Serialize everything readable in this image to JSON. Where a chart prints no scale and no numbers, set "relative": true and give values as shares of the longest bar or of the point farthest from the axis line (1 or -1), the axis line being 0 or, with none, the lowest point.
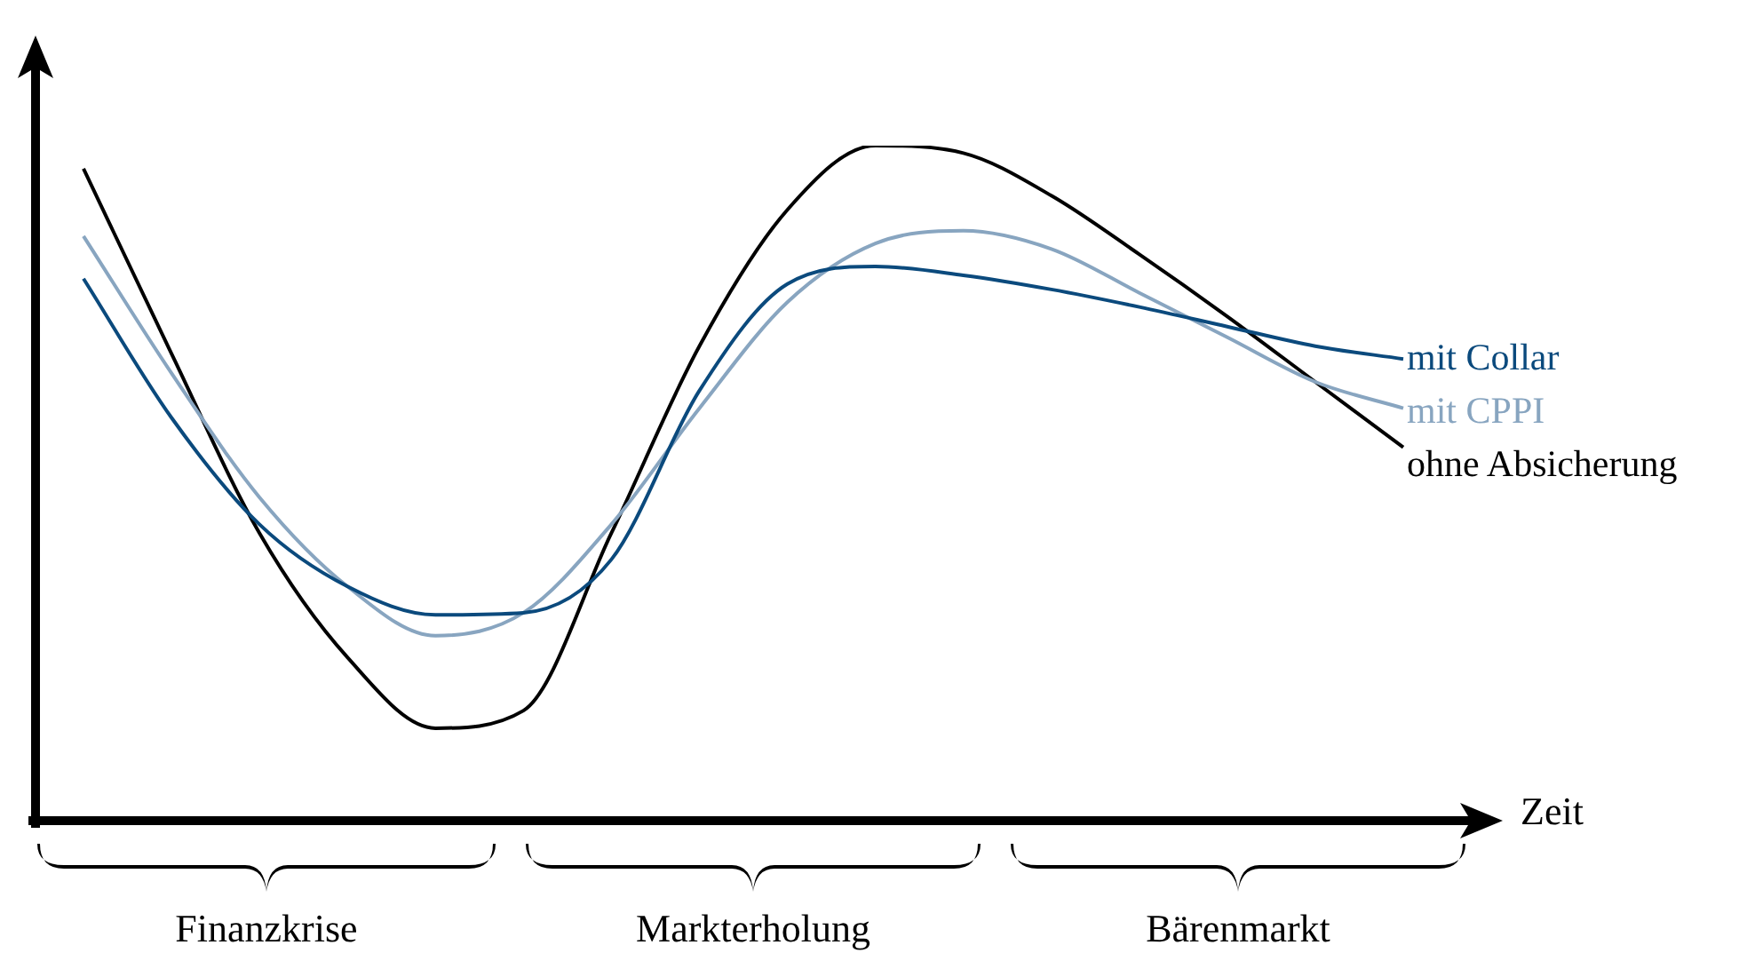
{
  "chart_data": {
    "type": "line",
    "relative": true,
    "marker": "none",
    "xlabel": "Zeit",
    "categories": [
      null,
      null,
      null,
      null,
      null,
      null,
      null,
      null,
      null,
      null,
      null,
      null,
      null,
      null,
      null,
      null
    ],
    "series": [
      {
        "name": "mit Collar",
        "color": "#0b4a7d",
        "values": [
          0.803,
          0.597,
          0.439,
          0.347,
          0.305,
          0.308,
          0.387,
          0.637,
          0.795,
          0.821,
          0.808,
          0.787,
          0.761,
          0.732,
          0.703,
          0.684
        ]
      },
      {
        "name": "mit CPPI",
        "color": "#88a5c0",
        "values": [
          0.866,
          0.663,
          0.479,
          0.347,
          0.274,
          0.308,
          0.439,
          0.611,
          0.768,
          0.855,
          0.874,
          0.847,
          0.782,
          0.716,
          0.65,
          0.611
        ]
      },
      {
        "name": "ohne Absicherung",
        "color": "#000000",
        "values": [
          0.966,
          0.692,
          0.426,
          0.242,
          0.137,
          0.163,
          0.426,
          0.703,
          0.905,
          1.0,
          0.989,
          0.926,
          0.839,
          0.747,
          0.65,
          0.553
        ]
      }
    ],
    "annotations": [
      "Finanzkrise",
      "Markterholung",
      "Bärenmarkt"
    ]
  }
}
